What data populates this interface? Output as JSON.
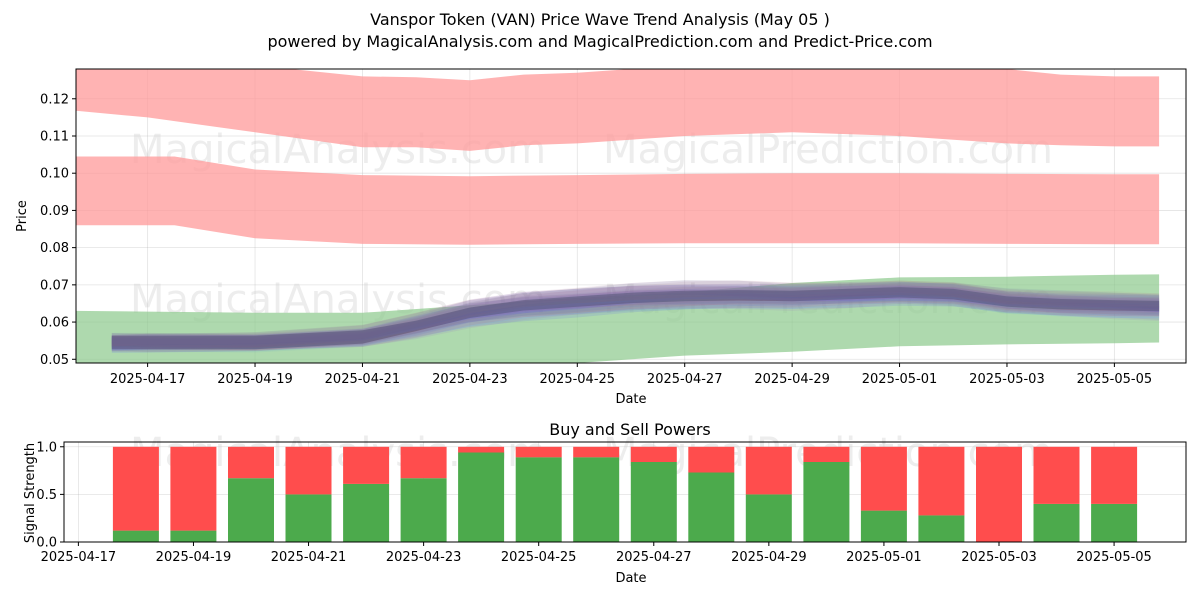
{
  "title_line1": "Vanspor Token (VAN) Price Wave Trend Analysis (May 05 )",
  "title_line2": "powered by MagicalAnalysis.com and MagicalPrediction.com and Predict-Price.com",
  "watermarks": [
    "MagicalAnalysis.com",
    "MagicalPrediction.com"
  ],
  "colors": {
    "red_band": "#ff9999",
    "green_band": "#8cc98c",
    "buy": "#4caa4c",
    "sell": "#ff4d4d"
  },
  "chart_data": [
    {
      "type": "area",
      "title": "",
      "xlabel": "Date",
      "ylabel": "Price",
      "ylim": [
        0.049,
        0.128
      ],
      "xlim": [
        "2025-04-15T16:00",
        "2025-05-06T08:00"
      ],
      "x_ticks": [
        "2025-04-17",
        "2025-04-19",
        "2025-04-21",
        "2025-04-23",
        "2025-04-25",
        "2025-04-27",
        "2025-04-29",
        "2025-05-01",
        "2025-05-03",
        "2025-05-05"
      ],
      "y_ticks": [
        "0.05",
        "0.06",
        "0.07",
        "0.08",
        "0.09",
        "0.10",
        "0.11",
        "0.12"
      ],
      "grid": true,
      "bands": [
        {
          "color": "red",
          "x": [
            "2025-04-15T12:00",
            "2025-04-17",
            "2025-04-19",
            "2025-04-21",
            "2025-04-22",
            "2025-04-23",
            "2025-04-24",
            "2025-04-25",
            "2025-04-27",
            "2025-04-29",
            "2025-05-01",
            "2025-05-02",
            "2025-05-03",
            "2025-05-04",
            "2025-05-05",
            "2025-05-05T20:00"
          ],
          "upper": [
            0.129,
            0.129,
            0.129,
            0.126,
            0.1258,
            0.125,
            0.1265,
            0.127,
            0.129,
            0.129,
            0.129,
            0.129,
            0.128,
            0.1265,
            0.126,
            0.126
          ],
          "lower": [
            0.117,
            0.115,
            0.111,
            0.107,
            0.107,
            0.106,
            0.1075,
            0.108,
            0.11,
            0.111,
            0.11,
            0.109,
            0.108,
            0.1075,
            0.1072,
            0.1072
          ]
        },
        {
          "color": "red",
          "x": [
            "2025-04-15T16:00",
            "2025-04-17",
            "2025-04-17T12:00",
            "2025-04-19",
            "2025-04-21",
            "2025-04-23",
            "2025-04-25",
            "2025-04-27",
            "2025-04-29",
            "2025-05-01",
            "2025-05-03",
            "2025-05-05",
            "2025-05-05T20:00"
          ],
          "upper": [
            0.1045,
            0.1045,
            0.1045,
            0.101,
            0.0995,
            0.0992,
            0.0995,
            0.0998,
            0.1,
            0.1,
            0.0998,
            0.0997,
            0.0997
          ],
          "lower": [
            0.086,
            0.086,
            0.086,
            0.0825,
            0.081,
            0.0808,
            0.081,
            0.0812,
            0.0812,
            0.0812,
            0.081,
            0.0809,
            0.0809
          ]
        },
        {
          "color": "green",
          "x": [
            "2025-04-15T16:00",
            "2025-04-17",
            "2025-04-19",
            "2025-04-21",
            "2025-04-23",
            "2025-04-25",
            "2025-04-27",
            "2025-04-29",
            "2025-05-01",
            "2025-05-03",
            "2025-05-05",
            "2025-05-05T20:00"
          ],
          "upper": [
            0.063,
            0.0628,
            0.0625,
            0.0625,
            0.0645,
            0.0665,
            0.068,
            0.0705,
            0.072,
            0.0722,
            0.0727,
            0.0728
          ],
          "lower": [
            0.049,
            0.049,
            0.049,
            0.049,
            0.049,
            0.049,
            0.051,
            0.052,
            0.0535,
            0.054,
            0.0543,
            0.0545
          ]
        }
      ],
      "wave_center": {
        "x": [
          "2025-04-16T08:00",
          "2025-04-17",
          "2025-04-19",
          "2025-04-21",
          "2025-04-22",
          "2025-04-23",
          "2025-04-24",
          "2025-04-25",
          "2025-04-26",
          "2025-04-27",
          "2025-04-28",
          "2025-04-29",
          "2025-04-30",
          "2025-05-01",
          "2025-05-02",
          "2025-05-03",
          "2025-05-04",
          "2025-05-05",
          "2025-05-05T20:00"
        ],
        "y": [
          0.0545,
          0.0545,
          0.0545,
          0.056,
          0.059,
          0.0625,
          0.0645,
          0.0655,
          0.0665,
          0.067,
          0.0672,
          0.067,
          0.0675,
          0.068,
          0.0675,
          0.0655,
          0.0648,
          0.0645,
          0.0643
        ],
        "spread": [
          0.0015,
          0.0016,
          0.0017,
          0.0022,
          0.003,
          0.0038,
          0.0042,
          0.0043,
          0.0043,
          0.0043,
          0.0038,
          0.0034,
          0.0032,
          0.003,
          0.003,
          0.0032,
          0.0033,
          0.0033,
          0.0033
        ]
      }
    },
    {
      "type": "bar",
      "title": "Buy and Sell Powers",
      "xlabel": "Date",
      "ylabel": "Signal Strength",
      "ylim": [
        0,
        1.05
      ],
      "xlim": [
        "2025-04-16T18:00",
        "2025-05-06T06:00"
      ],
      "x_ticks": [
        "2025-04-17",
        "2025-04-19",
        "2025-04-21",
        "2025-04-23",
        "2025-04-25",
        "2025-04-27",
        "2025-04-29",
        "2025-05-01",
        "2025-05-03",
        "2025-05-05"
      ],
      "y_ticks": [
        "0.0",
        "0.5",
        "1.0"
      ],
      "grid": true,
      "categories": [
        "2025-04-18",
        "2025-04-19",
        "2025-04-20",
        "2025-04-21",
        "2025-04-22",
        "2025-04-23",
        "2025-04-24",
        "2025-04-25",
        "2025-04-26",
        "2025-04-27",
        "2025-04-28",
        "2025-04-29",
        "2025-04-30",
        "2025-05-01",
        "2025-05-02",
        "2025-05-03",
        "2025-05-04",
        "2025-05-05"
      ],
      "series": [
        {
          "name": "Buy",
          "values": [
            0.12,
            0.12,
            0.67,
            0.5,
            0.61,
            0.67,
            0.94,
            0.89,
            0.89,
            0.84,
            0.73,
            0.5,
            0.84,
            0.33,
            0.28,
            0.0,
            0.4,
            0.4
          ]
        },
        {
          "name": "Sell",
          "values": [
            0.88,
            0.88,
            0.33,
            0.5,
            0.39,
            0.33,
            0.06,
            0.11,
            0.11,
            0.16,
            0.27,
            0.5,
            0.16,
            0.67,
            0.72,
            1.0,
            0.6,
            0.6
          ]
        }
      ]
    }
  ]
}
